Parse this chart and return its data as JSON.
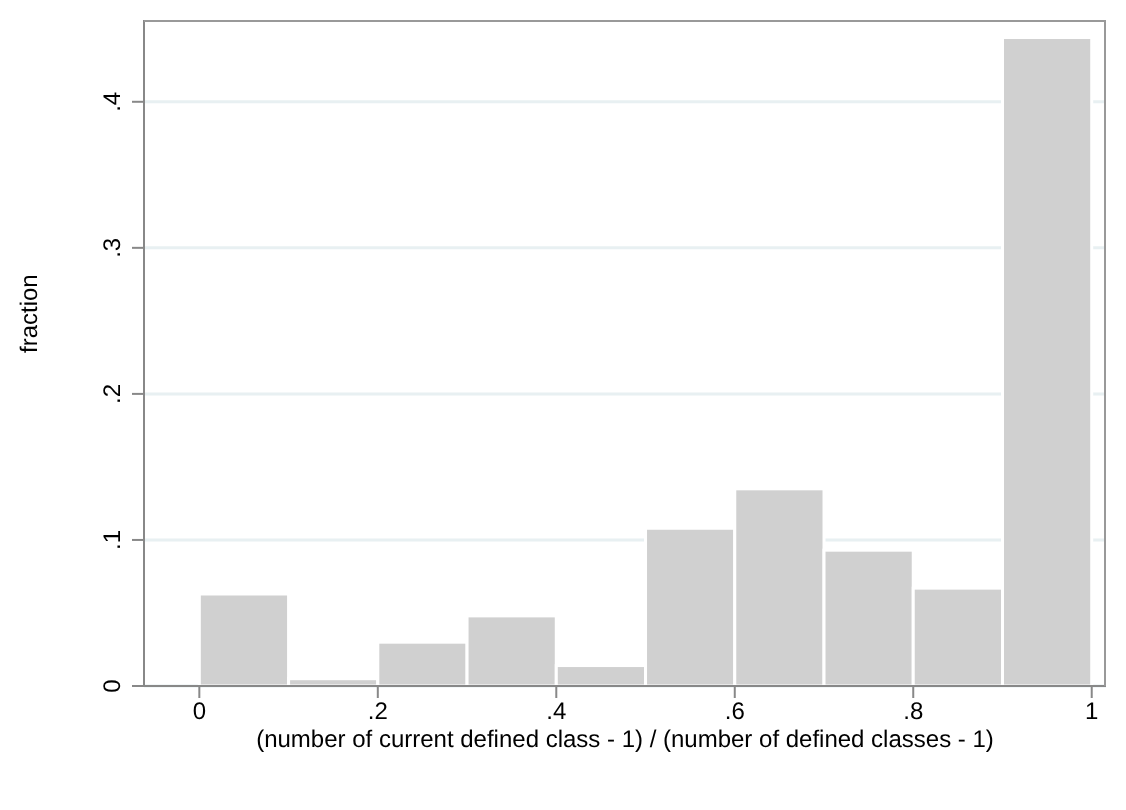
{
  "chart_data": {
    "type": "histogram",
    "xlabel": "(number of current defined class - 1) / (number of defined classes - 1)",
    "ylabel": "fraction",
    "bins": [
      0,
      0.1,
      0.2,
      0.3,
      0.4,
      0.5,
      0.6,
      0.7,
      0.8,
      0.9,
      1
    ],
    "values": [
      0.063,
      0.005,
      0.03,
      0.048,
      0.014,
      0.108,
      0.135,
      0.093,
      0.067,
      0.444
    ],
    "color": "#d0d0d0",
    "xlim": [
      -0.062,
      1.016
    ],
    "ylim": [
      0,
      0.456
    ],
    "xticks": [
      0,
      {
        "value": 0.2,
        "label": ".2"
      },
      {
        "value": 0.4,
        "label": ".4"
      },
      {
        "value": 0.6,
        "label": ".6"
      },
      {
        "value": 0.8,
        "label": ".8"
      },
      1
    ],
    "yticks": [
      0,
      {
        "value": 0.1,
        "label": ".1"
      },
      {
        "value": 0.2,
        "label": ".2"
      },
      {
        "value": 0.3,
        "label": ".3"
      },
      {
        "value": 0.4,
        "label": ".4"
      }
    ],
    "grid": "y"
  }
}
